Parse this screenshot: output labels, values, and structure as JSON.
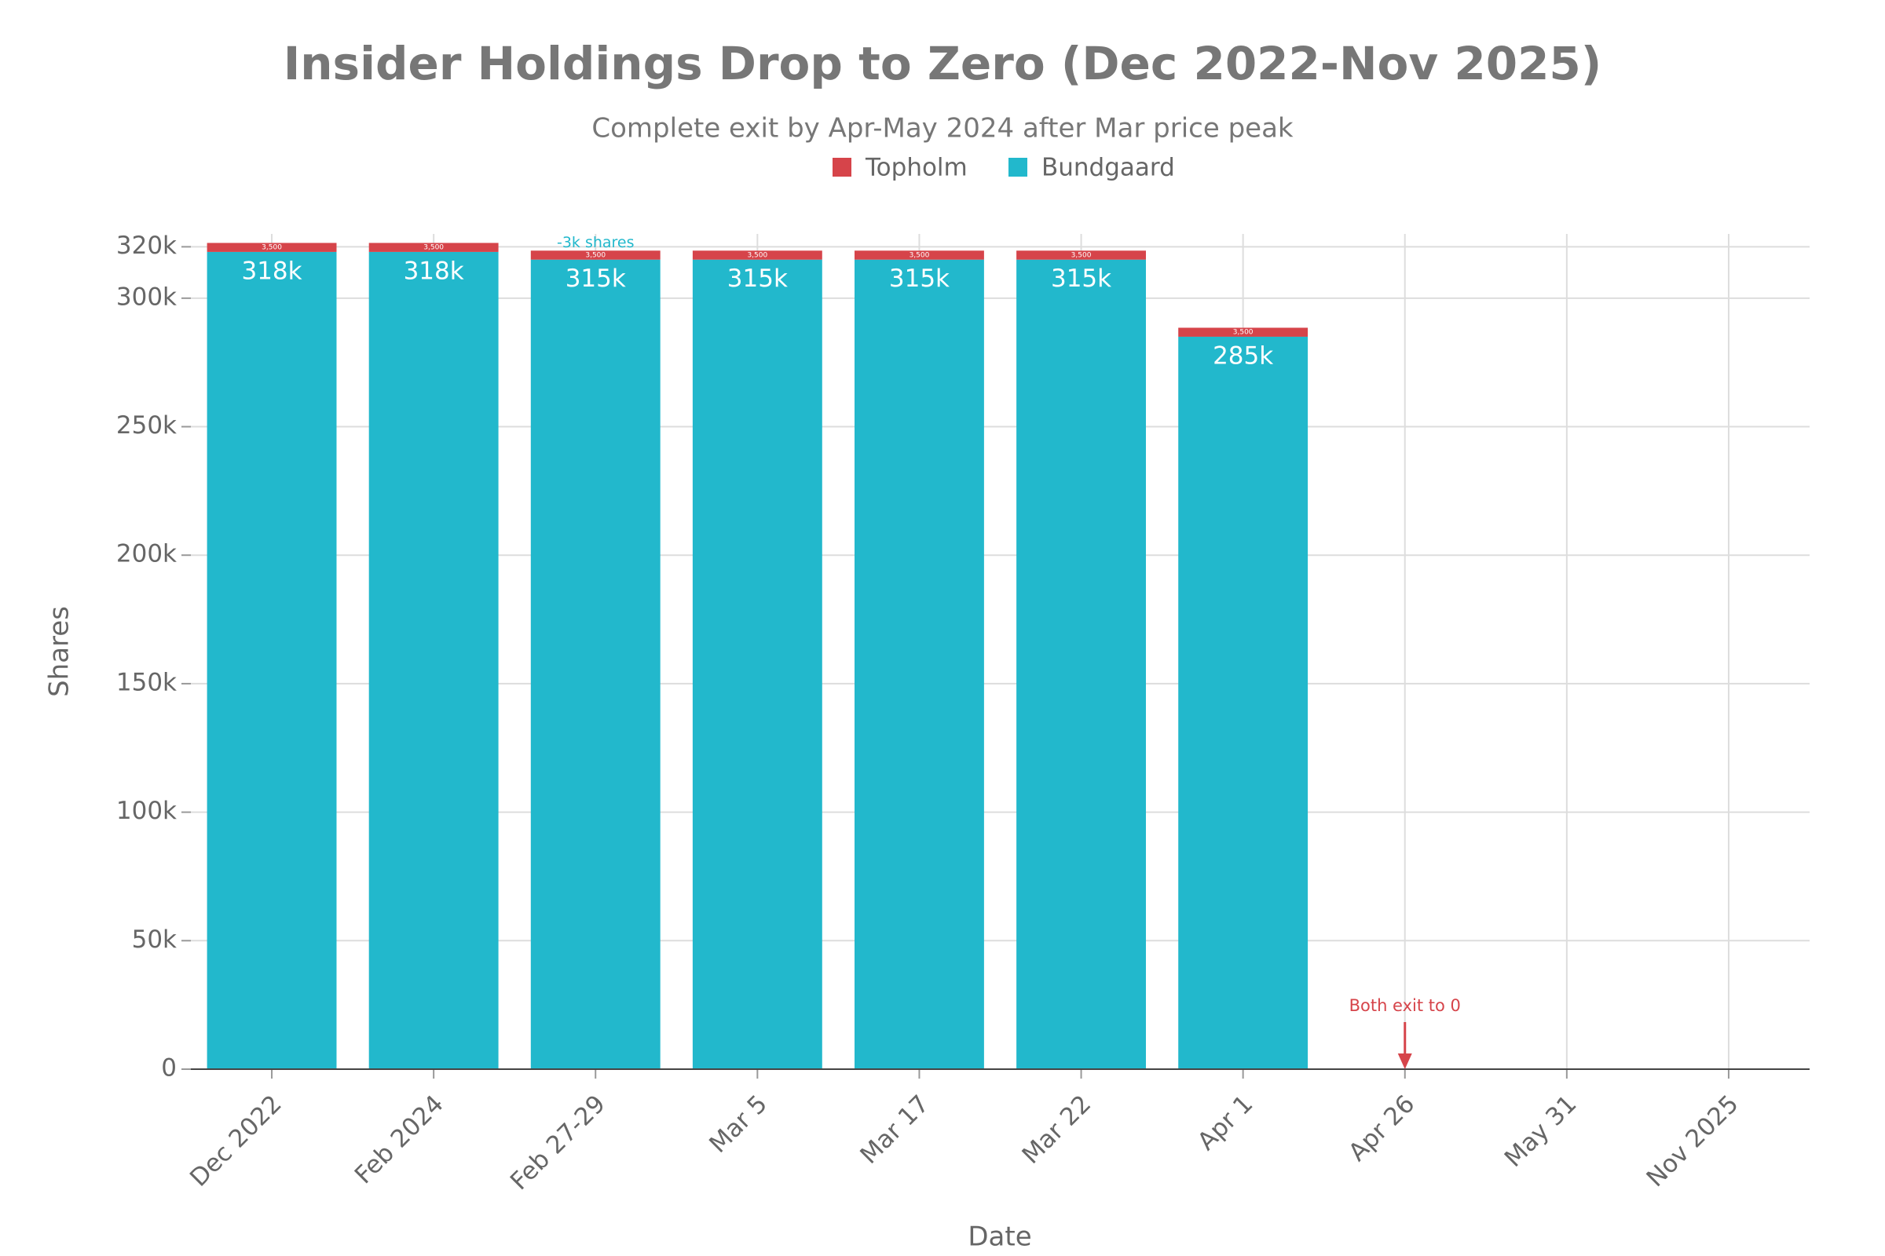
{
  "chart_data": {
    "type": "bar",
    "stacked": true,
    "title": "Insider Holdings Drop to Zero (Dec 2022-Nov 2025)",
    "subtitle": "Complete exit by Apr-May 2024 after Mar price peak",
    "x_label": "Date",
    "y_label": "Shares",
    "categories": [
      "Dec 2022",
      "Feb 2024",
      "Feb 27-29",
      "Mar 5",
      "Mar 17",
      "Mar 22",
      "Apr 1",
      "Apr 26",
      "May 31",
      "Nov 2025"
    ],
    "series": [
      {
        "name": "Topholm",
        "color": "#d6444a",
        "values": [
          3500,
          3500,
          3500,
          3500,
          3500,
          3500,
          3500,
          0,
          0,
          0
        ],
        "value_labels": [
          "3,500",
          "3,500",
          "3,500",
          "3,500",
          "3,500",
          "3,500",
          "3,500",
          null,
          null,
          null
        ]
      },
      {
        "name": "Bundgaard",
        "color": "#22b8cc",
        "values": [
          318000,
          318000,
          315000,
          315000,
          315000,
          315000,
          285000,
          0,
          0,
          0
        ],
        "value_labels": [
          "318k",
          "318k",
          "315k",
          "315k",
          "315k",
          "315k",
          "285k",
          null,
          null,
          null
        ]
      }
    ],
    "ylim": [
      0,
      325000
    ],
    "yticks": [
      0,
      {
        "value": 50000,
        "label": "50k"
      },
      {
        "value": 100000,
        "label": "100k"
      },
      {
        "value": 150000,
        "label": "150k"
      },
      {
        "value": 200000,
        "label": "200k"
      },
      {
        "value": 250000,
        "label": "250k"
      },
      {
        "value": 300000,
        "label": "300k"
      },
      {
        "value": 320000,
        "label": "320k"
      }
    ],
    "grid": true,
    "legend": "top",
    "annotations": [
      {
        "text": "-3k shares",
        "x": "Feb 27-29",
        "color": "#22b8cc"
      },
      {
        "text": "Both exit to 0",
        "x": "Apr 26",
        "color": "#d6444a",
        "arrow": true
      }
    ]
  }
}
